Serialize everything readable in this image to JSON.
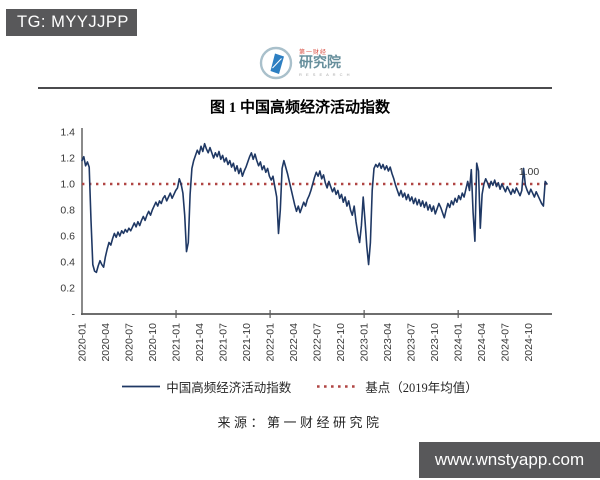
{
  "watermarks": {
    "telegram_badge": "TG: MYYJJPP",
    "website_badge": "www.wnstyapp.com"
  },
  "logo": {
    "brand": "第一财经",
    "institute": "研究院",
    "subtext": "R E S E A R C H",
    "circle_color": "#a9c0cb",
    "shape_color": "#2d7fc2"
  },
  "chart_data": {
    "type": "line",
    "title": "图 1  中国高频经济活动指数",
    "source_note": "来源：第一财经研究院",
    "annotation": {
      "text": "1.00"
    },
    "grid": false,
    "legend_position": "bottom",
    "y_axis": {
      "min": 0,
      "max": 1.4,
      "tick_step": 0.2,
      "ticks": [
        {
          "label": "1.4",
          "value": 1.4
        },
        {
          "label": "1.2",
          "value": 1.2
        },
        {
          "label": "1.0",
          "value": 1.0
        },
        {
          "label": "0.8",
          "value": 0.8
        },
        {
          "label": "0.6",
          "value": 0.6
        },
        {
          "label": "0.4",
          "value": 0.4
        },
        {
          "label": "0.2",
          "value": 0.2
        },
        {
          "label": "-",
          "value": 0
        }
      ]
    },
    "x_axis": {
      "label_interval_months": 3,
      "tick_labels": [
        "2020-01",
        "2020-04",
        "2020-07",
        "2020-10",
        "2021-01",
        "2021-04",
        "2021-07",
        "2021-10",
        "2022-01",
        "2022-04",
        "2022-07",
        "2022-10",
        "2023-01",
        "2023-04",
        "2023-07",
        "2023-10",
        "2024-01",
        "2024-04",
        "2024-07",
        "2024-10"
      ],
      "year_tick_months": [
        12,
        24,
        36,
        48
      ]
    },
    "series": [
      {
        "name": "中国高频经济活动指数",
        "color": "#1f3864",
        "style": "solid",
        "frequency": "weekly",
        "start": "2020-01",
        "end": "2024-11",
        "values": [
          1.18,
          1.21,
          1.14,
          1.17,
          1.13,
          0.72,
          0.38,
          0.33,
          0.32,
          0.37,
          0.41,
          0.38,
          0.36,
          0.44,
          0.5,
          0.55,
          0.53,
          0.58,
          0.62,
          0.59,
          0.63,
          0.6,
          0.64,
          0.62,
          0.65,
          0.63,
          0.66,
          0.64,
          0.67,
          0.7,
          0.67,
          0.71,
          0.68,
          0.72,
          0.75,
          0.72,
          0.76,
          0.79,
          0.76,
          0.8,
          0.83,
          0.86,
          0.83,
          0.87,
          0.85,
          0.89,
          0.91,
          0.87,
          0.9,
          0.93,
          0.89,
          0.92,
          0.95,
          0.97,
          1.04,
          1.0,
          0.93,
          0.76,
          0.48,
          0.55,
          0.92,
          1.12,
          1.18,
          1.22,
          1.26,
          1.23,
          1.29,
          1.25,
          1.31,
          1.27,
          1.24,
          1.28,
          1.24,
          1.2,
          1.24,
          1.21,
          1.25,
          1.19,
          1.22,
          1.17,
          1.2,
          1.15,
          1.18,
          1.13,
          1.16,
          1.1,
          1.14,
          1.08,
          1.12,
          1.06,
          1.1,
          1.13,
          1.17,
          1.21,
          1.24,
          1.19,
          1.23,
          1.18,
          1.14,
          1.17,
          1.11,
          1.14,
          1.09,
          1.12,
          1.06,
          1.03,
          1.06,
          0.98,
          0.9,
          0.62,
          0.8,
          1.12,
          1.18,
          1.13,
          1.08,
          1.02,
          0.96,
          0.9,
          0.84,
          0.79,
          0.83,
          0.78,
          0.82,
          0.86,
          0.83,
          0.88,
          0.91,
          0.95,
          1.0,
          1.05,
          1.09,
          1.06,
          1.1,
          1.04,
          1.07,
          1.01,
          0.97,
          1.02,
          0.98,
          0.94,
          0.97,
          0.92,
          0.95,
          0.89,
          0.92,
          0.86,
          0.9,
          0.83,
          0.87,
          0.8,
          0.76,
          0.83,
          0.71,
          0.62,
          0.55,
          0.68,
          0.9,
          0.72,
          0.52,
          0.38,
          0.55,
          0.95,
          1.12,
          1.15,
          1.13,
          1.16,
          1.12,
          1.15,
          1.11,
          1.14,
          1.1,
          1.13,
          1.08,
          1.04,
          0.99,
          0.95,
          0.91,
          0.95,
          0.9,
          0.93,
          0.88,
          0.92,
          0.87,
          0.9,
          0.85,
          0.89,
          0.84,
          0.88,
          0.83,
          0.87,
          0.82,
          0.86,
          0.8,
          0.84,
          0.79,
          0.83,
          0.77,
          0.81,
          0.85,
          0.82,
          0.78,
          0.74,
          0.8,
          0.85,
          0.82,
          0.87,
          0.84,
          0.89,
          0.86,
          0.91,
          0.88,
          0.93,
          0.9,
          0.96,
          1.02,
          0.95,
          1.11,
          0.78,
          0.56,
          1.16,
          1.1,
          0.66,
          0.92,
          1.0,
          1.04,
          1.01,
          0.97,
          1.02,
          0.99,
          1.03,
          0.98,
          1.01,
          0.96,
          1.0,
          0.97,
          0.94,
          0.98,
          0.95,
          0.92,
          0.96,
          0.93,
          0.97,
          0.94,
          0.91,
          0.95,
          1.12,
          0.99,
          0.95,
          0.92,
          0.96,
          0.93,
          0.9,
          0.94,
          0.91,
          0.88,
          0.85,
          0.83,
          1.02,
          1.0
        ]
      },
      {
        "name": "基点（2019年均值）",
        "color": "#b04543",
        "style": "dotted",
        "type": "baseline",
        "value": 1.0
      }
    ]
  }
}
